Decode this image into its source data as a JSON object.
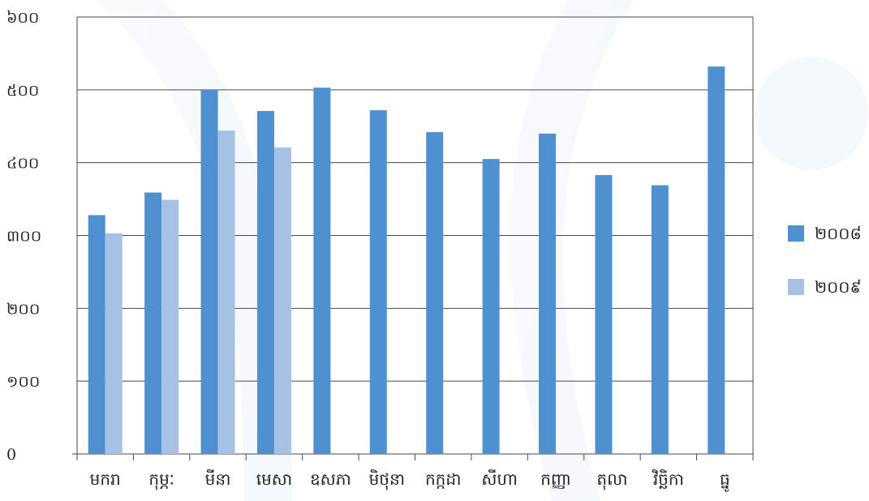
{
  "chart_data": {
    "type": "bar",
    "categories": [
      "មករា",
      "កុម្ភៈ",
      "មីនា",
      "មេសា",
      "ឧសភា",
      "មិថុនា",
      "កក្កដា",
      "សីហា",
      "កញ្ញា",
      "តុលា",
      "វិច្ឆិកា",
      "ធ្នូ"
    ],
    "series": [
      {
        "name": "២០០៨",
        "color": "#4f90d0",
        "values": [
          328,
          359,
          500,
          471,
          503,
          472,
          442,
          405,
          440,
          383,
          369,
          532
        ]
      },
      {
        "name": "២០០៩",
        "color": "#a7c1e5",
        "values": [
          303,
          349,
          444,
          421,
          null,
          null,
          null,
          null,
          null,
          null,
          null,
          null
        ]
      }
    ],
    "yticks": [
      "0",
      "១០០",
      "២០០",
      "៣០០",
      "៤០០",
      "៥០០",
      "៦០០"
    ],
    "ylim": [
      0,
      600
    ],
    "grid": true,
    "legend_position": "right",
    "title": "",
    "xlabel": "",
    "ylabel": ""
  }
}
